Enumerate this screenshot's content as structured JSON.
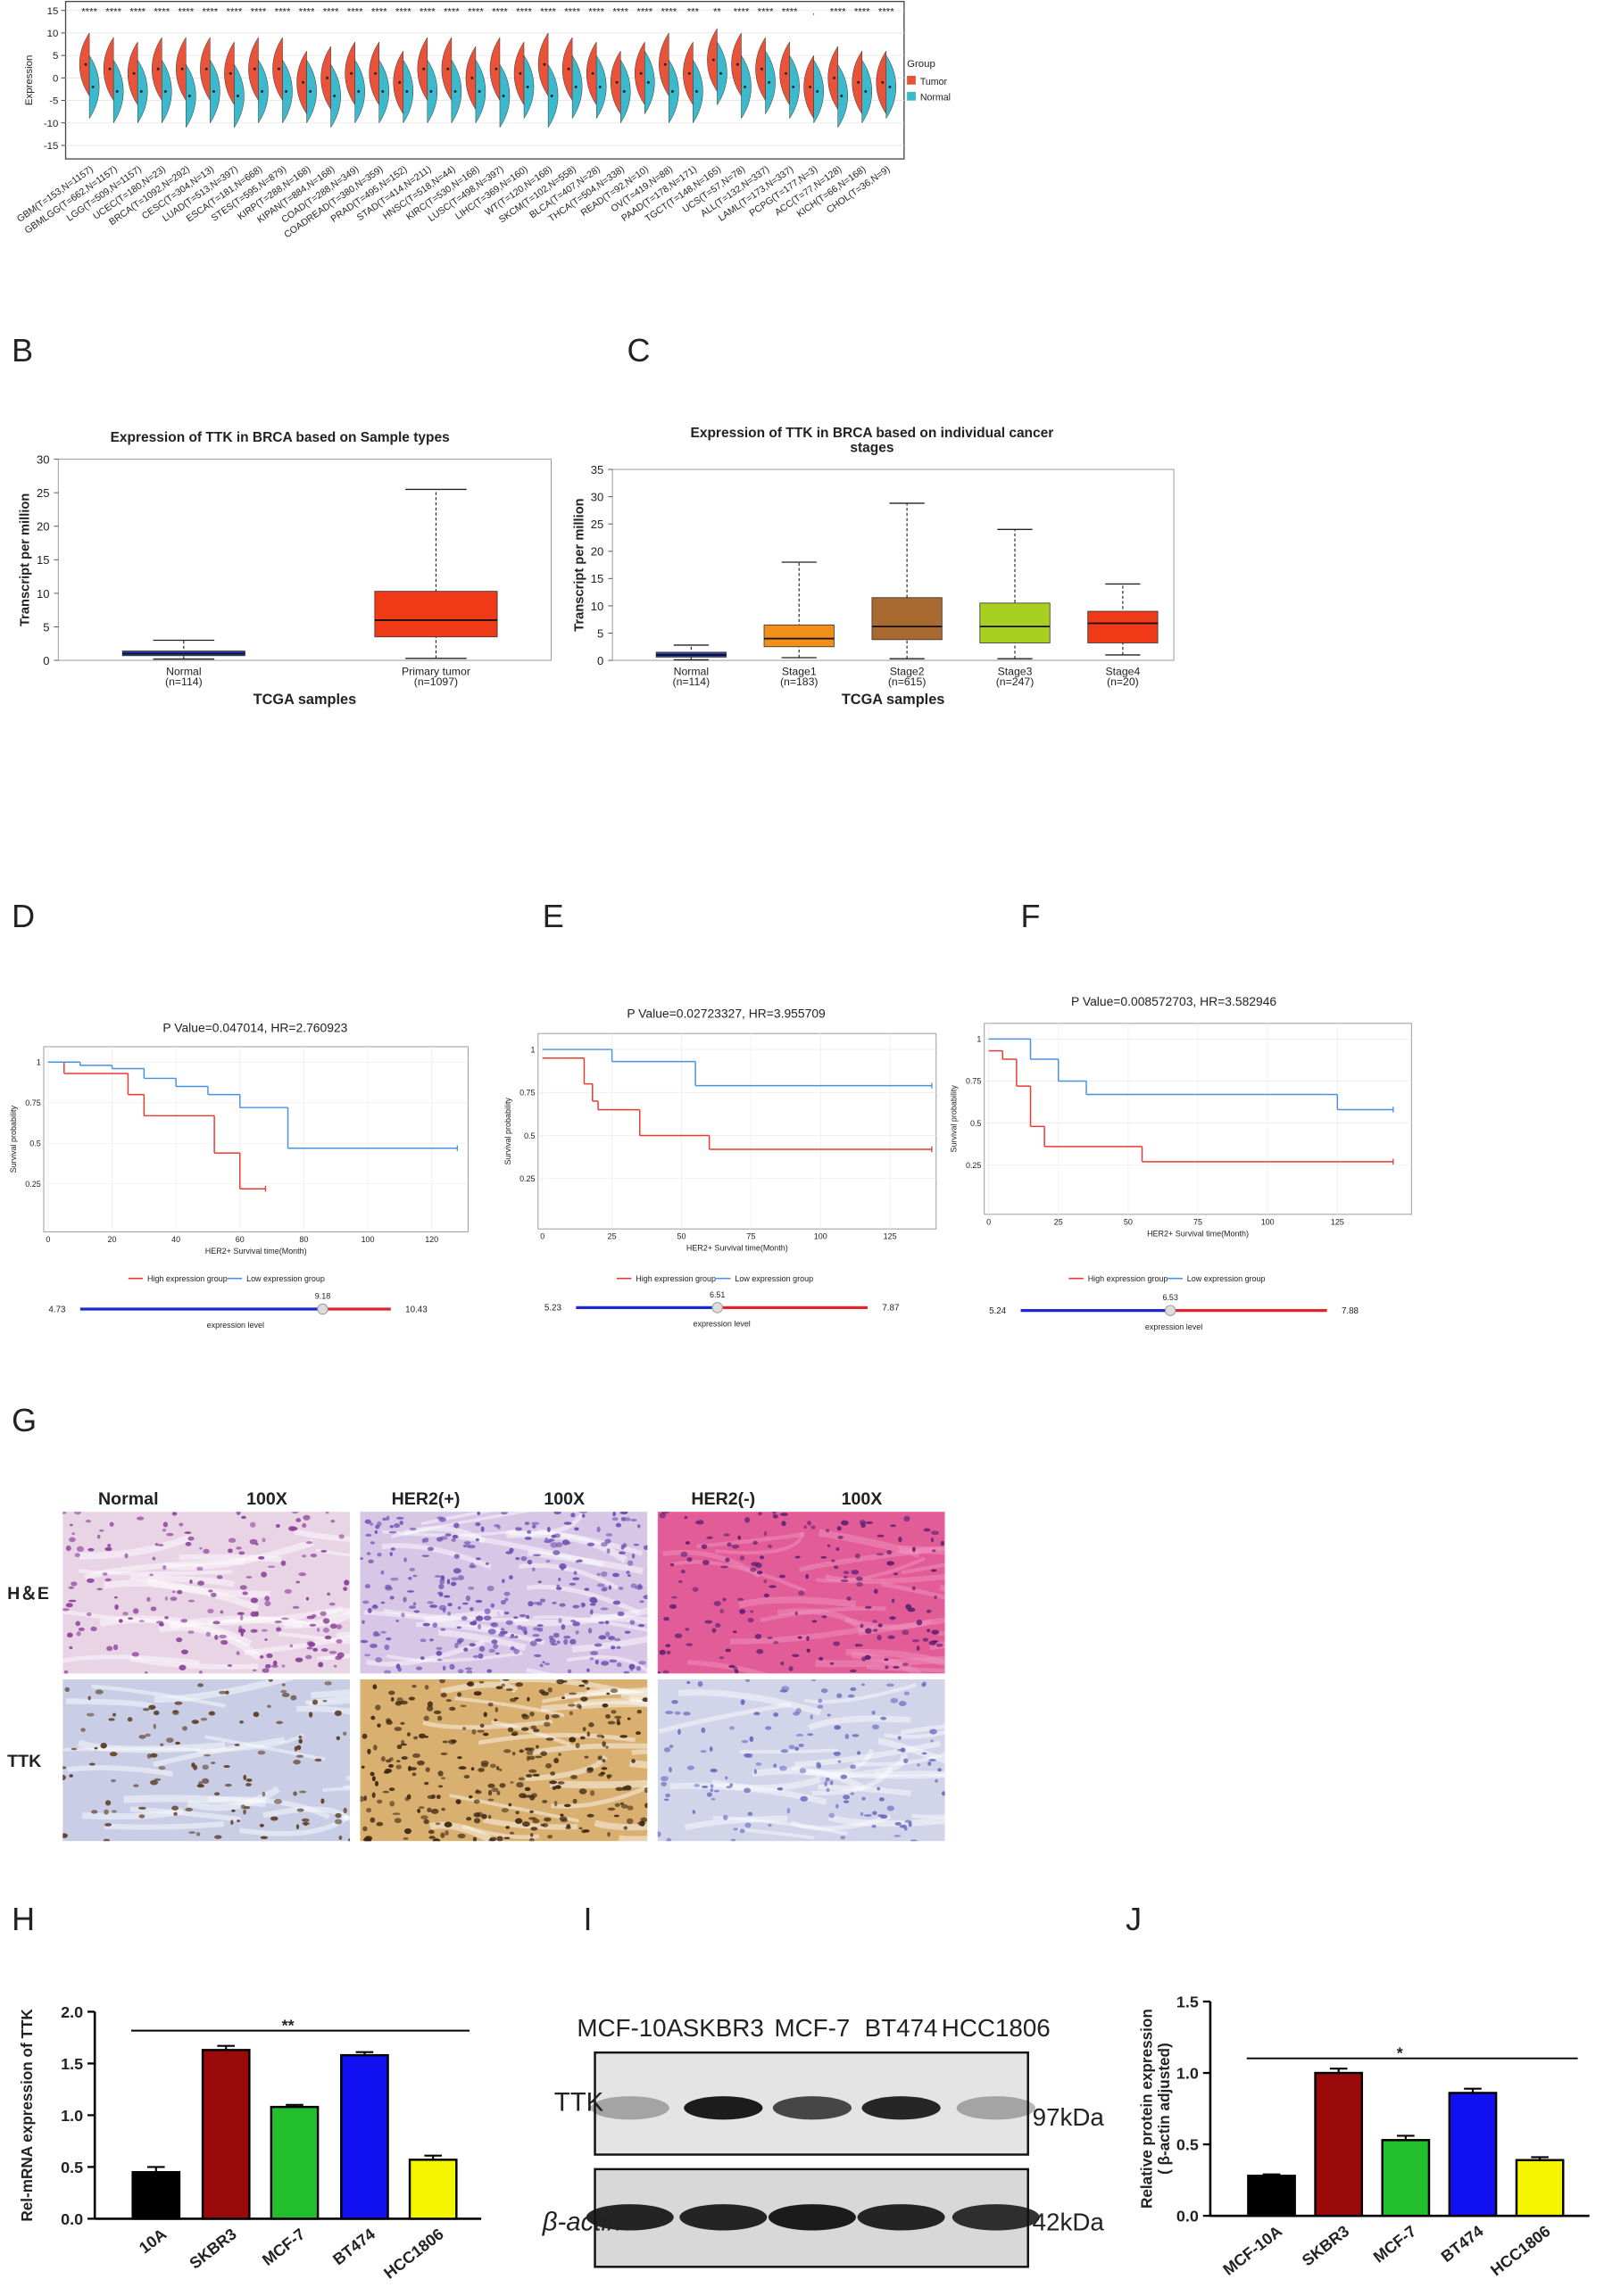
{
  "panel_labels": [
    "B",
    "C",
    "D",
    "E",
    "F",
    "G",
    "H",
    "I",
    "J"
  ],
  "chart_data": [
    {
      "type": "violin",
      "ylabel": "Expression",
      "categories": [
        "GBM(T=153,N=1157)",
        "GBMLGG(T=662,N=1157)",
        "LGG(T=509,N=1157)",
        "UCEC(T=180,N=23)",
        "BRCA(T=1092,N=292)",
        "CESC(T=304,N=13)",
        "LUAD(T=513,N=397)",
        "ESCA(T=181,N=668)",
        "STES(T=595,N=879)",
        "KIRP(T=288,N=168)",
        "KIPAN(T=884,N=168)",
        "COAD(T=288,N=349)",
        "COADREAD(T=380,N=359)",
        "PRAD(T=495,N=152)",
        "STAD(T=414,N=211)",
        "HNSC(T=518,N=44)",
        "KIRC(T=530,N=168)",
        "LUSC(T=498,N=397)",
        "LIHC(T=369,N=160)",
        "WT(T=120,N=168)",
        "SKCM(T=102,N=558)",
        "BLCA(T=407,N=28)",
        "THCA(T=504,N=338)",
        "READ(T=92,N=10)",
        "OV(T=419,N=88)",
        "PAAD(T=178,N=171)",
        "TGCT(T=148,N=165)",
        "UCS(T=57,N=78)",
        "ALL(T=132,N=337)",
        "LAML(T=173,N=337)",
        "PCPG(T=177,N=3)",
        "ACC(T=77,N=128)",
        "KICH(T=66,N=168)",
        "CHOL(T=36,N=9)"
      ],
      "annotations": [
        "****",
        "****",
        "****",
        "****",
        "****",
        "****",
        "****",
        "****",
        "****",
        "****",
        "****",
        "****",
        "****",
        "****",
        "****",
        "****",
        "****",
        "****",
        "****",
        "****",
        "****",
        "****",
        "****",
        "****",
        "****",
        "***",
        "**",
        "****",
        "****",
        "****",
        ".",
        "****",
        "****",
        "****"
      ],
      "ylim": [
        -18,
        17
      ],
      "yticks": [
        -15,
        -10,
        -5,
        0,
        5,
        10,
        15
      ],
      "grid": true,
      "legend_title": "Group",
      "series": [
        {
          "name": "Tumor",
          "color": "#e8533a",
          "values": [
            3,
            2,
            1,
            2,
            2,
            2,
            1,
            2,
            2,
            -1,
            0,
            1,
            1,
            -1,
            2,
            2,
            0,
            2,
            1,
            3,
            2,
            1,
            -1,
            1,
            3,
            1,
            4,
            3,
            2,
            1,
            -2,
            0,
            -1,
            -1
          ]
        },
        {
          "name": "Normal",
          "color": "#3cb9cc",
          "values": [
            -2,
            -3,
            -3,
            -3,
            -4,
            -3,
            -4,
            -3,
            -3,
            -3,
            -4,
            -3,
            -3,
            -3,
            -3,
            -3,
            -3,
            -4,
            -2,
            -4,
            -2,
            -2,
            -3,
            -1,
            -3,
            -3,
            1,
            -2,
            -1,
            -2,
            -3,
            -4,
            -3,
            -2
          ]
        }
      ]
    },
    {
      "type": "box",
      "title": "Expression of TTK in BRCA based on Sample types",
      "ylabel": "Transcript per million",
      "xlabel": "TCGA samples",
      "categories": [
        "Normal",
        "Primary tumor"
      ],
      "sample_sizes": [
        "(n=114)",
        "(n=1097)"
      ],
      "colors": [
        "#2f3fb0",
        "#f03a17"
      ],
      "min": [
        0.2,
        0.3
      ],
      "q1": [
        0.7,
        3.5
      ],
      "median": [
        1.0,
        6.0
      ],
      "q3": [
        1.4,
        10.3
      ],
      "max": [
        3.0,
        25.5
      ],
      "ylim": [
        0,
        30
      ],
      "yticks": [
        0,
        5,
        10,
        15,
        20,
        25,
        30
      ]
    },
    {
      "type": "box",
      "title": [
        "Expression of TTK in BRCA based on individual cancer",
        "stages"
      ],
      "ylabel": "Transcript per million",
      "xlabel": "TCGA samples",
      "categories": [
        "Normal",
        "Stage1",
        "Stage2",
        "Stage3",
        "Stage4"
      ],
      "sample_sizes": [
        "(n=114)",
        "(n=183)",
        "(n=615)",
        "(n=247)",
        "(n=20)"
      ],
      "colors": [
        "#3040b0",
        "#f0901a",
        "#a86a30",
        "#a8d020",
        "#f03a17"
      ],
      "min": [
        0.1,
        0.5,
        0.3,
        0.3,
        1.0
      ],
      "q1": [
        0.6,
        2.5,
        3.8,
        3.2,
        3.2
      ],
      "median": [
        1.0,
        4.0,
        6.2,
        6.2,
        6.8
      ],
      "q3": [
        1.5,
        6.5,
        11.5,
        10.5,
        9.0
      ],
      "max": [
        2.8,
        18.0,
        28.8,
        24.0,
        14.0
      ],
      "ylim": [
        0,
        35
      ],
      "yticks": [
        0,
        5,
        10,
        15,
        20,
        25,
        30,
        35
      ]
    },
    {
      "type": "survival",
      "title": "P Value=0.047014, HR=2.760923",
      "xlabel": "HER2+ Survival time(Month)",
      "ylabel": "Survival probability",
      "xlim": [
        0,
        130
      ],
      "ylim": [
        0,
        1.05
      ],
      "xticks": [
        0,
        20,
        40,
        60,
        80,
        100,
        120
      ],
      "yticks": [
        0.25,
        0.5,
        0.75,
        1
      ],
      "series": [
        {
          "name": "High expression group",
          "color": "#e8392f",
          "x": [
            0,
            5,
            25,
            30,
            52,
            55,
            60,
            68
          ],
          "values": [
            1,
            0.93,
            0.8,
            0.67,
            0.44,
            0.44,
            0.22,
            0.22
          ]
        },
        {
          "name": "Low expression group",
          "color": "#4a90e2",
          "x": [
            0,
            10,
            20,
            30,
            40,
            50,
            60,
            75,
            128
          ],
          "values": [
            1,
            0.98,
            0.96,
            0.9,
            0.85,
            0.8,
            0.72,
            0.47,
            0.47
          ]
        }
      ],
      "slider": {
        "min": 4.73,
        "cutoff": 9.18,
        "max": 10.43,
        "label": "expression level"
      }
    },
    {
      "type": "survival",
      "title": "P Value=0.02723327, HR=3.955709",
      "xlabel": "HER2+ Survival time(Month)",
      "ylabel": "Survival probability",
      "xlim": [
        0,
        140
      ],
      "ylim": [
        0,
        1.05
      ],
      "xticks": [
        0,
        25,
        50,
        75,
        100,
        125
      ],
      "yticks": [
        0.25,
        0.5,
        0.75,
        1
      ],
      "series": [
        {
          "name": "High expression group",
          "color": "#e8392f",
          "x": [
            0,
            15,
            18,
            20,
            25,
            35,
            60,
            140
          ],
          "values": [
            0.95,
            0.8,
            0.7,
            0.65,
            0.65,
            0.5,
            0.42,
            0.42
          ]
        },
        {
          "name": "Low expression group",
          "color": "#4a90e2",
          "x": [
            0,
            25,
            55,
            140
          ],
          "values": [
            1,
            0.93,
            0.79,
            0.79
          ]
        }
      ],
      "slider": {
        "min": 5.23,
        "cutoff": 6.51,
        "max": 7.87,
        "label": "expression level"
      }
    },
    {
      "type": "survival",
      "title": "P Value=0.008572703, HR=3.582946",
      "xlabel": "HER2+ Survival time(Month)",
      "ylabel": "Survival probability",
      "xlim": [
        0,
        150
      ],
      "ylim": [
        0,
        1.05
      ],
      "xticks": [
        0,
        25,
        50,
        75,
        100,
        125
      ],
      "yticks": [
        0.25,
        0.5,
        0.75,
        1
      ],
      "series": [
        {
          "name": "High expression group",
          "color": "#e8392f",
          "x": [
            0,
            5,
            10,
            15,
            20,
            55,
            145
          ],
          "values": [
            0.93,
            0.88,
            0.72,
            0.48,
            0.36,
            0.27,
            0.27
          ]
        },
        {
          "name": "Low expression group",
          "color": "#4a90e2",
          "x": [
            0,
            15,
            25,
            35,
            120,
            125,
            145
          ],
          "values": [
            1,
            0.88,
            0.75,
            0.67,
            0.67,
            0.58,
            0.58
          ]
        }
      ],
      "slider": {
        "min": 5.24,
        "cutoff": 6.53,
        "max": 7.88,
        "label": "expression level"
      }
    },
    {
      "type": "bar",
      "ylabel": "Rel-mRNA expression of TTK",
      "categories": [
        "10A",
        "SKBR3",
        "MCF-7",
        "BT474",
        "HCC1806"
      ],
      "values": [
        0.45,
        1.63,
        1.08,
        1.58,
        0.57
      ],
      "errors": [
        0.05,
        0.04,
        0.02,
        0.03,
        0.04
      ],
      "colors": [
        "#000000",
        "#9b0a0a",
        "#22c02c",
        "#1010f0",
        "#f5f500"
      ],
      "annotation": "**",
      "ylim": [
        0,
        2
      ],
      "yticks": [
        {
          "value": 0,
          "label": "0.0"
        },
        {
          "value": 0.5,
          "label": "0.5"
        },
        {
          "value": 1,
          "label": "1.0"
        },
        {
          "value": 1.5,
          "label": "1.5"
        },
        {
          "value": 2,
          "label": "2.0"
        }
      ]
    },
    {
      "type": "bar",
      "ylabel": [
        "Relative protein expression",
        "( β-actin adjusted)"
      ],
      "categories": [
        "MCF-10A",
        "SKBR3",
        "MCF-7",
        "BT474",
        "HCC1806"
      ],
      "values": [
        0.28,
        1.0,
        0.53,
        0.86,
        0.39
      ],
      "errors": [
        0.01,
        0.03,
        0.03,
        0.03,
        0.02
      ],
      "colors": [
        "#000000",
        "#9b0a0a",
        "#22c02c",
        "#1010f0",
        "#f5f500"
      ],
      "annotation": "*",
      "ylim": [
        0,
        1.5
      ],
      "yticks": [
        {
          "value": 0,
          "label": "0.0"
        },
        {
          "value": 0.5,
          "label": "0.5"
        },
        {
          "value": 1,
          "label": "1.0"
        },
        {
          "value": 1.5,
          "label": "1.5"
        }
      ]
    }
  ],
  "histology": {
    "row_labels": [
      "H＆E",
      "TTK"
    ],
    "columns": [
      {
        "title": "Normal",
        "magnification": "100X"
      },
      {
        "title": "HER2(+)",
        "magnification": "100X"
      },
      {
        "title": "HER2(-)",
        "magnification": "100X"
      }
    ]
  },
  "western_blot": {
    "cell_lines": [
      "MCF-10A",
      "SKBR3",
      "MCF-7",
      "BT474",
      "HCC1806"
    ],
    "rows": [
      {
        "label": "TTK",
        "size": "97kDa"
      },
      {
        "label": "β-actin",
        "size": "42kDa"
      }
    ]
  }
}
